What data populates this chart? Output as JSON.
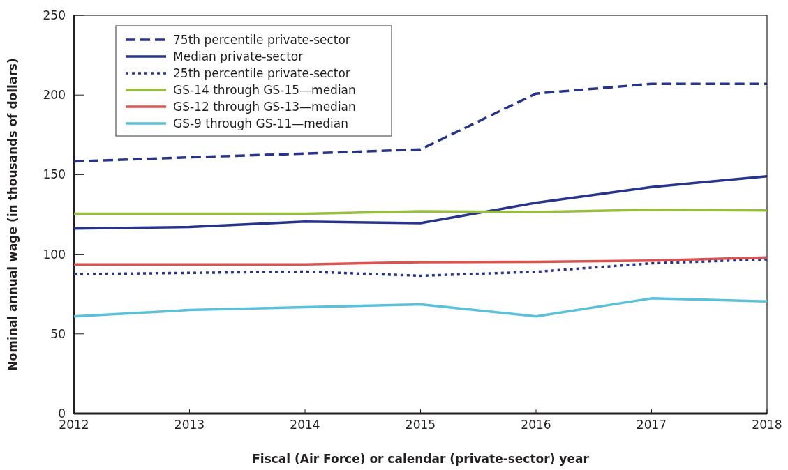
{
  "chart_data": {
    "type": "line",
    "xlabel": "Fiscal (Air Force) or calendar (private-sector) year",
    "ylabel": "Nominal annual wage (in thousands of dollars)",
    "x": [
      2012,
      2013,
      2014,
      2015,
      2016,
      2017,
      2018
    ],
    "xlim": [
      2012,
      2018
    ],
    "xticks": [
      2012,
      2013,
      2014,
      2015,
      2016,
      2017,
      2018
    ],
    "ylim": [
      0,
      250
    ],
    "yticks": [
      0,
      50,
      100,
      150,
      200,
      250
    ],
    "legend": "top left",
    "series": [
      {
        "name": "75th percentile private-sector",
        "color": "#27348b",
        "line_style": "dashed",
        "values": [
          158.3,
          160.9,
          163.2,
          165.8,
          200.9,
          207,
          207
        ]
      },
      {
        "name": "Median private-sector",
        "color": "#27348b",
        "line_style": "solid",
        "values": [
          116.1,
          117.1,
          120.5,
          119.5,
          132.3,
          142.2,
          149
        ]
      },
      {
        "name": "25th percentile private-sector",
        "color": "#27348b",
        "line_style": "dotted",
        "values": [
          87.5,
          88.3,
          89.1,
          86.5,
          89,
          94.3,
          96.8
        ]
      },
      {
        "name": "GS-14 through GS-15—median",
        "color": "#97bf3d",
        "line_style": "solid",
        "values": [
          125.4,
          125.4,
          125.4,
          127,
          126.5,
          128,
          127.5
        ]
      },
      {
        "name": "GS-12 through GS-13—median",
        "color": "#d9534f",
        "line_style": "solid",
        "values": [
          93.6,
          93.6,
          93.6,
          95,
          95.2,
          96,
          98
        ]
      },
      {
        "name": "GS-9 through GS-11—median",
        "color": "#5bc0d9",
        "line_style": "solid",
        "values": [
          61,
          65,
          66.8,
          68.5,
          61,
          72.3,
          70.4
        ]
      }
    ]
  }
}
